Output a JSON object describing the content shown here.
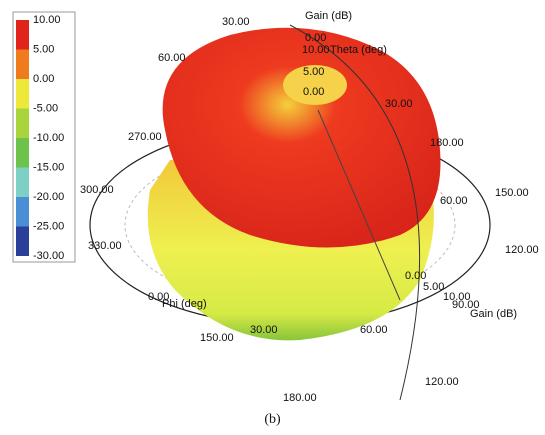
{
  "colorbar": {
    "labels": [
      "10.00",
      "5.00",
      "0.00",
      "-5.00",
      "-10.00",
      "-15.00",
      "-20.00",
      "-25.00",
      "-30.00"
    ]
  },
  "labels": [
    "60.00",
    "30.00",
    "Gain (dB)",
    "0.00",
    "10.00",
    "Theta (deg)",
    "5.00",
    "0.00",
    "30.00",
    "270.00",
    "180.00",
    "300.00",
    "150.00",
    "60.00",
    "120.00",
    "330.00",
    "0.00",
    "5.00",
    "10.00",
    "90.00",
    "Gain (dB)",
    "0.00",
    "Phi (deg)",
    "30.00",
    "60.00",
    "150.00",
    "120.00",
    "180.00"
  ],
  "caption": "(b)"
}
